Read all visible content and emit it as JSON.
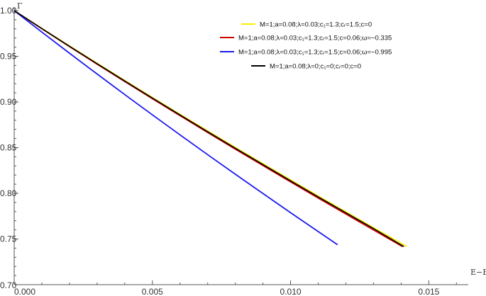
{
  "chart_data": {
    "type": "line",
    "xlabel": "E−E₀",
    "ylabel": "Γ",
    "xlim": [
      0.0,
      0.0163
    ],
    "ylim": [
      0.7,
      1.0
    ],
    "x_ticks": [
      "0.000",
      "0.005",
      "0.010",
      "0.015"
    ],
    "x_tick_values": [
      0.0,
      0.005,
      0.01,
      0.015
    ],
    "y_ticks": [
      "0.70",
      "0.75",
      "0.80",
      "0.85",
      "0.90",
      "0.95",
      "1.00"
    ],
    "y_tick_values": [
      0.7,
      0.75,
      0.8,
      0.85,
      0.9,
      0.95,
      1.0
    ],
    "legend_position": "top-right",
    "series": [
      {
        "name": "M=1;a=0.08;λ=0.03;c₁=1.3;cᵣ=1.5;c=0",
        "color": "#ffee00",
        "x": [
          0.0,
          0.001,
          0.002,
          0.003,
          0.004,
          0.005,
          0.006,
          0.007,
          0.008,
          0.009,
          0.01,
          0.011,
          0.012,
          0.013,
          0.0142
        ],
        "values": [
          1.0,
          0.9805,
          0.9613,
          0.9423,
          0.9235,
          0.9049,
          0.8865,
          0.8683,
          0.8503,
          0.8324,
          0.8147,
          0.7971,
          0.7797,
          0.7624,
          0.7418
        ]
      },
      {
        "name": "M=1;a=0.08;λ=0.03;c₁=1.3;cᵣ=1.5;c=0.06;ω=−0.335",
        "color": "#cc0000",
        "x": [
          0.0,
          0.001,
          0.002,
          0.003,
          0.004,
          0.005,
          0.006,
          0.007,
          0.008,
          0.009,
          0.01,
          0.011,
          0.012,
          0.013,
          0.01405
        ],
        "values": [
          1.0,
          0.9802,
          0.9607,
          0.9414,
          0.9224,
          0.9036,
          0.885,
          0.8666,
          0.8484,
          0.8304,
          0.8125,
          0.7948,
          0.7773,
          0.7599,
          0.7417
        ]
      },
      {
        "name": "M=1;a=0.08;λ=0.03;c₁=1.3;cᵣ=1.5;c=0.06;ω=−0.995",
        "color": "#1a1aee",
        "x": [
          0.0,
          0.001,
          0.002,
          0.003,
          0.004,
          0.005,
          0.006,
          0.007,
          0.008,
          0.009,
          0.01,
          0.011,
          0.0117
        ],
        "values": [
          1.0,
          0.9765,
          0.9534,
          0.9306,
          0.9081,
          0.8859,
          0.864,
          0.8423,
          0.8209,
          0.7998,
          0.7788,
          0.7581,
          0.7437
        ]
      },
      {
        "name": "M=1;a=0.08;λ=0;c₁=0;cᵣ=0;c=0",
        "color": "#000000",
        "x": [
          0.0,
          0.001,
          0.002,
          0.003,
          0.004,
          0.005,
          0.006,
          0.007,
          0.008,
          0.009,
          0.01,
          0.011,
          0.012,
          0.013,
          0.0141
        ],
        "values": [
          1.0,
          0.9804,
          0.961,
          0.9419,
          0.923,
          0.9043,
          0.8858,
          0.8675,
          0.8494,
          0.8315,
          0.8137,
          0.7961,
          0.7787,
          0.7614,
          0.7417
        ]
      }
    ]
  }
}
